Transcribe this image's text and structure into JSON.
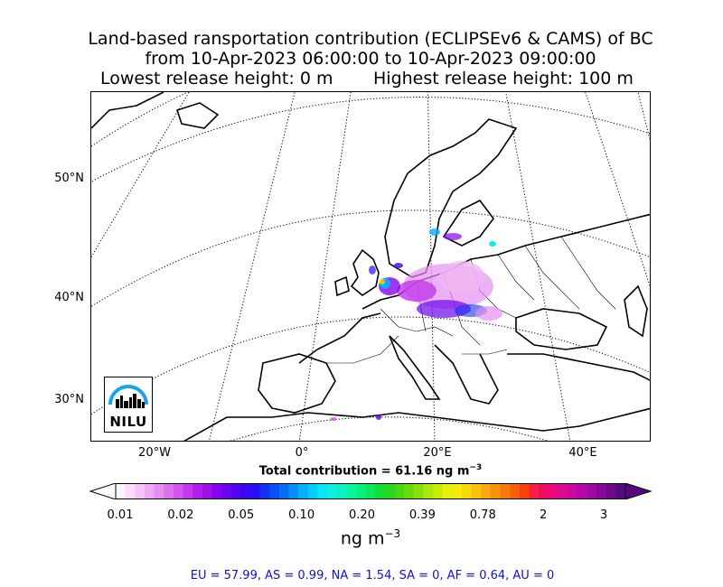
{
  "title": {
    "line1": "Land-based ransportation contribution (ECLIPSEv6 & CAMS) of BC",
    "line2": "from 10-Apr-2023 06:00:00 to 10-Apr-2023 09:00:00",
    "line3_left": "Lowest release height: 0 m",
    "line3_right": "Highest release height: 100 m"
  },
  "map": {
    "lat_labels": [
      "50°N",
      "40°N",
      "30°N"
    ],
    "lon_labels": [
      "20°W",
      "0°",
      "20°E",
      "40°E"
    ],
    "logo_text": "NILU"
  },
  "total_contribution": {
    "label": "Total contribution = 61.16 ng m",
    "exponent": "−3"
  },
  "colorbar": {
    "ticks": [
      "0.01",
      "0.02",
      "0.05",
      "0.10",
      "0.20",
      "0.39",
      "0.78",
      "2",
      "3"
    ],
    "unit": "ng m",
    "unit_exponent": "−3",
    "colors": [
      "#fdf3fd",
      "#f9dcfa",
      "#f4c3f6",
      "#eeaaf2",
      "#e68ff0",
      "#dc72ee",
      "#d055ec",
      "#c23aeb",
      "#b020ea",
      "#9d10ea",
      "#8506ec",
      "#6c04ef",
      "#5402f2",
      "#3c05f4",
      "#2710f5",
      "#1430f7",
      "#0850f8",
      "#0470fa",
      "#0490fb",
      "#06b0fc",
      "#08cdfc",
      "#08e4f8",
      "#08f2e4",
      "#08f4c4",
      "#08f4a0",
      "#08f07c",
      "#08e85a",
      "#10e03a",
      "#28d820",
      "#48d80c",
      "#68dc08",
      "#88e008",
      "#a8e808",
      "#c8ee08",
      "#e4f208",
      "#f4ec08",
      "#f8d808",
      "#f8c008",
      "#f8a808",
      "#f89008",
      "#f87808",
      "#f86008",
      "#f84008",
      "#f82040",
      "#f40c60",
      "#ec0878",
      "#e00890",
      "#cc08a0",
      "#b808a8",
      "#a008a4",
      "#880898",
      "#70088c",
      "#580880"
    ]
  },
  "region_summary": "EU = 57.99,  AS = 0.99,  NA = 1.54,  SA = 0,  AF = 0.64,  AU = 0"
}
